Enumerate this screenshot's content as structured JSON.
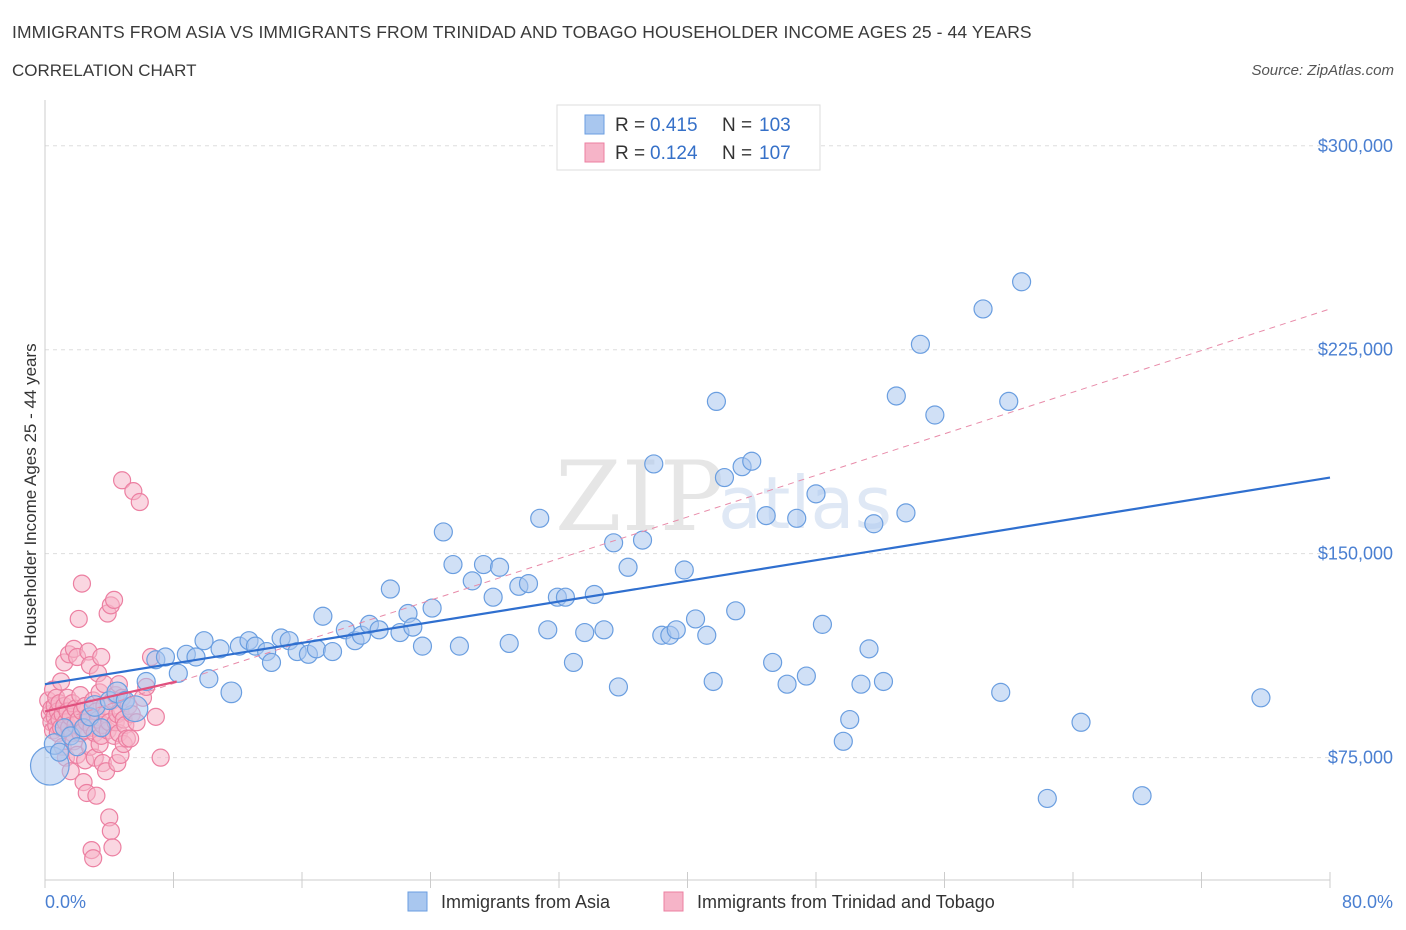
{
  "title": "IMMIGRANTS FROM ASIA VS IMMIGRANTS FROM TRINIDAD AND TOBAGO HOUSEHOLDER INCOME AGES 25 - 44 YEARS",
  "subtitle": "CORRELATION CHART",
  "source": "Source: ZipAtlas.com",
  "watermark": {
    "zip": "ZIP",
    "atlas": "atlas"
  },
  "colors": {
    "asia_fill": "#a9c7ef",
    "asia_stroke": "#6a9ee0",
    "asia_line": "#2f6fcf",
    "tt_fill": "#f6b4c8",
    "tt_stroke": "#ec7fa1",
    "tt_line": "#e0507e",
    "tick_label": "#4a7fd1",
    "grid": "#dddddd"
  },
  "legend": {
    "rows": [
      {
        "r_label": "R = ",
        "r_value": "0.415",
        "n_label": "N = ",
        "n_value": "103",
        "series": "asia"
      },
      {
        "r_label": "R = ",
        "r_value": "0.124",
        "n_label": "N = ",
        "n_value": "107",
        "series": "tt"
      }
    ]
  },
  "chart_data": {
    "type": "scatter",
    "xlabel": "",
    "ylabel": "Householder Income Ages 25 - 44 years",
    "xlim": [
      0,
      80
    ],
    "ylim": [
      30000,
      315000
    ],
    "x_tick_labels": [
      {
        "value": 0,
        "label": "0.0%"
      },
      {
        "value": 80,
        "label": "80.0%"
      }
    ],
    "y_ticks": [
      {
        "value": 75000,
        "label": "$75,000"
      },
      {
        "value": 150000,
        "label": "$150,000"
      },
      {
        "value": 225000,
        "label": "$225,000"
      },
      {
        "value": 300000,
        "label": "$300,000"
      }
    ],
    "grid": true,
    "legend_position": "top-center",
    "series": [
      {
        "name": "Immigrants from Asia",
        "key": "asia",
        "trend": {
          "x0": 0,
          "y0": 102000,
          "x1": 80,
          "y1": 178000,
          "style": "solid"
        },
        "trend_dashed": {
          "x0": 0,
          "y0": 87000,
          "x1": 80,
          "y1": 240000
        },
        "points": [
          [
            0.3,
            72000,
            3
          ],
          [
            0.6,
            80000,
            1.6
          ],
          [
            0.9,
            77000,
            1.4
          ],
          [
            1.2,
            86000,
            1.4
          ],
          [
            1.6,
            83000,
            1.4
          ],
          [
            2.0,
            79000,
            1.4
          ],
          [
            2.4,
            86000,
            1.4
          ],
          [
            2.8,
            90000,
            1.4
          ],
          [
            3.1,
            94000,
            1.6
          ],
          [
            3.5,
            86000,
            1.4
          ],
          [
            4.0,
            96000,
            1.4
          ],
          [
            4.5,
            99000,
            1.6
          ],
          [
            5.0,
            96000,
            1.4
          ],
          [
            5.6,
            93000,
            2
          ],
          [
            6.3,
            103000,
            1.4
          ],
          [
            6.9,
            111000,
            1.4
          ],
          [
            7.5,
            112000,
            1.4
          ],
          [
            8.3,
            106000,
            1.4
          ],
          [
            8.8,
            113000,
            1.4
          ],
          [
            9.4,
            112000,
            1.4
          ],
          [
            9.9,
            118000,
            1.4
          ],
          [
            10.2,
            104000,
            1.4
          ],
          [
            10.9,
            115000,
            1.4
          ],
          [
            11.6,
            99000,
            1.6
          ],
          [
            12.1,
            116000,
            1.4
          ],
          [
            12.7,
            118000,
            1.4
          ],
          [
            13.1,
            116000,
            1.4
          ],
          [
            13.8,
            114000,
            1.4
          ],
          [
            14.1,
            110000,
            1.4
          ],
          [
            14.7,
            119000,
            1.4
          ],
          [
            15.2,
            118000,
            1.4
          ],
          [
            15.7,
            114000,
            1.4
          ],
          [
            16.4,
            113000,
            1.4
          ],
          [
            16.9,
            115000,
            1.4
          ],
          [
            17.3,
            127000,
            1.4
          ],
          [
            17.9,
            114000,
            1.4
          ],
          [
            18.7,
            122000,
            1.4
          ],
          [
            19.3,
            118000,
            1.4
          ],
          [
            19.7,
            120000,
            1.4
          ],
          [
            20.2,
            124000,
            1.4
          ],
          [
            20.8,
            122000,
            1.4
          ],
          [
            21.5,
            137000,
            1.4
          ],
          [
            22.1,
            121000,
            1.4
          ],
          [
            22.6,
            128000,
            1.4
          ],
          [
            22.9,
            123000,
            1.4
          ],
          [
            23.5,
            116000,
            1.4
          ],
          [
            24.1,
            130000,
            1.4
          ],
          [
            24.8,
            158000,
            1.4
          ],
          [
            25.4,
            146000,
            1.4
          ],
          [
            25.8,
            116000,
            1.4
          ],
          [
            26.6,
            140000,
            1.4
          ],
          [
            27.3,
            146000,
            1.4
          ],
          [
            27.9,
            134000,
            1.4
          ],
          [
            28.3,
            145000,
            1.4
          ],
          [
            28.9,
            117000,
            1.4
          ],
          [
            29.5,
            138000,
            1.4
          ],
          [
            30.1,
            139000,
            1.4
          ],
          [
            30.8,
            163000,
            1.4
          ],
          [
            31.3,
            122000,
            1.4
          ],
          [
            31.9,
            134000,
            1.4
          ],
          [
            32.4,
            134000,
            1.4
          ],
          [
            32.9,
            110000,
            1.4
          ],
          [
            33.6,
            121000,
            1.4
          ],
          [
            34.2,
            135000,
            1.4
          ],
          [
            34.8,
            122000,
            1.4
          ],
          [
            35.4,
            154000,
            1.4
          ],
          [
            35.7,
            101000,
            1.4
          ],
          [
            36.3,
            145000,
            1.4
          ],
          [
            37.2,
            155000,
            1.4
          ],
          [
            37.9,
            183000,
            1.4
          ],
          [
            38.4,
            120000,
            1.4
          ],
          [
            38.9,
            120000,
            1.4
          ],
          [
            39.3,
            122000,
            1.4
          ],
          [
            39.8,
            144000,
            1.4
          ],
          [
            40.5,
            126000,
            1.4
          ],
          [
            41.2,
            120000,
            1.4
          ],
          [
            41.6,
            103000,
            1.4
          ],
          [
            41.8,
            206000,
            1.4
          ],
          [
            42.3,
            178000,
            1.4
          ],
          [
            43.0,
            129000,
            1.4
          ],
          [
            43.4,
            182000,
            1.4
          ],
          [
            44.0,
            184000,
            1.4
          ],
          [
            44.9,
            164000,
            1.4
          ],
          [
            45.3,
            110000,
            1.4
          ],
          [
            46.2,
            102000,
            1.4
          ],
          [
            46.8,
            163000,
            1.4
          ],
          [
            47.4,
            105000,
            1.4
          ],
          [
            48.0,
            172000,
            1.4
          ],
          [
            48.4,
            124000,
            1.4
          ],
          [
            49.7,
            81000,
            1.4
          ],
          [
            50.1,
            89000,
            1.4
          ],
          [
            50.8,
            102000,
            1.4
          ],
          [
            51.3,
            115000,
            1.4
          ],
          [
            51.6,
            161000,
            1.4
          ],
          [
            52.2,
            103000,
            1.4
          ],
          [
            53.0,
            208000,
            1.4
          ],
          [
            53.6,
            165000,
            1.4
          ],
          [
            54.5,
            227000,
            1.4
          ],
          [
            55.4,
            201000,
            1.4
          ],
          [
            58.4,
            240000,
            1.4
          ],
          [
            59.5,
            99000,
            1.4
          ],
          [
            60.0,
            206000,
            1.4
          ],
          [
            60.8,
            250000,
            1.4
          ],
          [
            62.4,
            60000,
            1.4
          ],
          [
            64.5,
            88000,
            1.4
          ],
          [
            68.3,
            61000,
            1.4
          ],
          [
            75.7,
            97000,
            1.4
          ]
        ]
      },
      {
        "name": "Immigrants from Trinidad and Tobago",
        "key": "tt",
        "trend": {
          "x0": 0,
          "y0": 92000,
          "x1": 8.2,
          "y1": 103000,
          "style": "solid"
        },
        "points": [
          [
            0.2,
            96000
          ],
          [
            0.3,
            91000
          ],
          [
            0.4,
            88000
          ],
          [
            0.4,
            93000
          ],
          [
            0.5,
            100000
          ],
          [
            0.5,
            85000
          ],
          [
            0.6,
            94000
          ],
          [
            0.6,
            90000
          ],
          [
            0.7,
            87000
          ],
          [
            0.7,
            97000
          ],
          [
            0.8,
            92000
          ],
          [
            0.8,
            84000
          ],
          [
            0.9,
            89000
          ],
          [
            0.9,
            95000
          ],
          [
            1.0,
            86000
          ],
          [
            1.0,
            103000
          ],
          [
            1.1,
            91000
          ],
          [
            1.1,
            79000
          ],
          [
            1.2,
            94000
          ],
          [
            1.2,
            110000
          ],
          [
            1.3,
            88000
          ],
          [
            1.3,
            75000
          ],
          [
            1.4,
            97000
          ],
          [
            1.4,
            92000
          ],
          [
            1.5,
            86000
          ],
          [
            1.5,
            113000
          ],
          [
            1.6,
            90000
          ],
          [
            1.6,
            70000
          ],
          [
            1.7,
            84000
          ],
          [
            1.7,
            95000
          ],
          [
            1.8,
            115000
          ],
          [
            1.8,
            81000
          ],
          [
            1.9,
            93000
          ],
          [
            1.9,
            87000
          ],
          [
            2.0,
            112000
          ],
          [
            2.0,
            76000
          ],
          [
            2.1,
            89000
          ],
          [
            2.1,
            126000
          ],
          [
            2.2,
            98000
          ],
          [
            2.2,
            84000
          ],
          [
            2.3,
            139000
          ],
          [
            2.3,
            92000
          ],
          [
            2.4,
            66000
          ],
          [
            2.4,
            85000
          ],
          [
            2.5,
            94000
          ],
          [
            2.5,
            74000
          ],
          [
            2.6,
            62000
          ],
          [
            2.6,
            88000
          ],
          [
            2.7,
            114000
          ],
          [
            2.7,
            90000
          ],
          [
            2.8,
            109000
          ],
          [
            2.8,
            79000
          ],
          [
            2.9,
            41000
          ],
          [
            2.9,
            86000
          ],
          [
            3.0,
            38000
          ],
          [
            3.0,
            96000
          ],
          [
            3.1,
            75000
          ],
          [
            3.1,
            84000
          ],
          [
            3.2,
            61000
          ],
          [
            3.2,
            92000
          ],
          [
            3.3,
            89000
          ],
          [
            3.3,
            106000
          ],
          [
            3.4,
            99000
          ],
          [
            3.4,
            80000
          ],
          [
            3.5,
            83000
          ],
          [
            3.5,
            112000
          ],
          [
            3.6,
            87000
          ],
          [
            3.6,
            73000
          ],
          [
            3.7,
            102000
          ],
          [
            3.7,
            94000
          ],
          [
            3.8,
            91000
          ],
          [
            3.8,
            70000
          ],
          [
            3.9,
            85000
          ],
          [
            3.9,
            128000
          ],
          [
            4.0,
            53000
          ],
          [
            4.0,
            88000
          ],
          [
            4.1,
            48000
          ],
          [
            4.1,
            131000
          ],
          [
            4.2,
            42000
          ],
          [
            4.2,
            96000
          ],
          [
            4.3,
            133000
          ],
          [
            4.3,
            83000
          ],
          [
            4.4,
            88000
          ],
          [
            4.4,
            98000
          ],
          [
            4.5,
            73000
          ],
          [
            4.5,
            91000
          ],
          [
            4.6,
            84000
          ],
          [
            4.6,
            102000
          ],
          [
            4.7,
            92000
          ],
          [
            4.7,
            76000
          ],
          [
            4.8,
            97000
          ],
          [
            4.8,
            177000
          ],
          [
            4.9,
            80000
          ],
          [
            4.9,
            89000
          ],
          [
            5.0,
            87000
          ],
          [
            5.1,
            82000
          ],
          [
            5.2,
            94000
          ],
          [
            5.3,
            82000
          ],
          [
            5.4,
            91000
          ],
          [
            5.5,
            173000
          ],
          [
            5.7,
            88000
          ],
          [
            5.9,
            169000
          ],
          [
            6.1,
            97000
          ],
          [
            6.3,
            101000
          ],
          [
            6.6,
            112000
          ],
          [
            6.9,
            90000
          ],
          [
            7.2,
            75000
          ]
        ]
      }
    ]
  },
  "bottom_legend": [
    {
      "label": "Immigrants from Asia",
      "series": "asia"
    },
    {
      "label": "Immigrants from Trinidad and Tobago",
      "series": "tt"
    }
  ]
}
